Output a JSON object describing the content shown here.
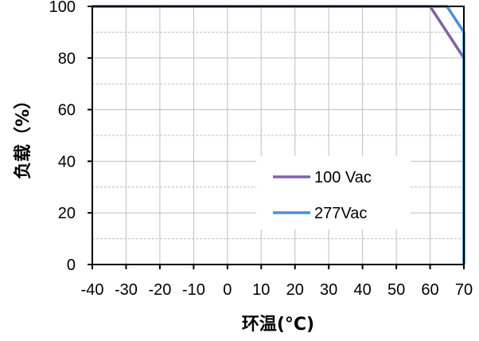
{
  "chart_data": {
    "type": "line",
    "xlabel": "环温(°C)",
    "ylabel": "负载（%）",
    "xlim": [
      -40,
      70
    ],
    "ylim": [
      0,
      100
    ],
    "xticks": [
      "-40",
      "-30",
      "-20",
      "-10",
      "0",
      "10",
      "20",
      "30",
      "40",
      "50",
      "60",
      "70"
    ],
    "yticks": [
      "0",
      "20",
      "40",
      "60",
      "80",
      "100"
    ],
    "grid": true,
    "legend_position": "bottom-right",
    "series": [
      {
        "name": "100 Vac",
        "color": "#7f63a8",
        "x": [
          -40,
          60,
          70,
          70
        ],
        "y": [
          100,
          100,
          80,
          0
        ]
      },
      {
        "name": "277Vac",
        "color": "#4a90d9",
        "x": [
          -40,
          65,
          70,
          70
        ],
        "y": [
          100,
          100,
          90,
          0
        ]
      }
    ]
  }
}
